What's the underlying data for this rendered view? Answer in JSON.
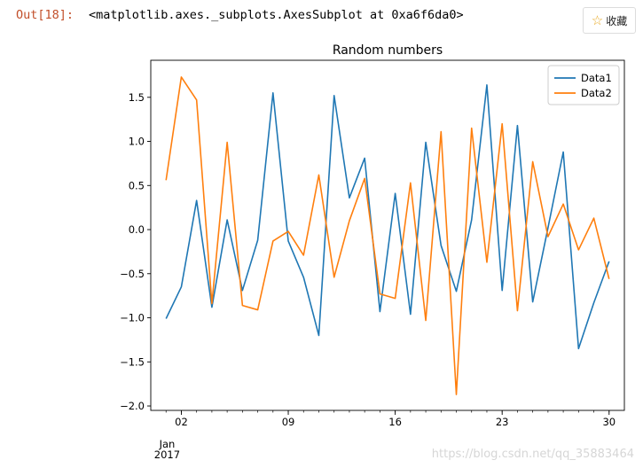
{
  "cell": {
    "prompt": "Out[18]:",
    "output_text": "<matplotlib.axes._subplots.AxesSubplot at 0xa6f6da0>"
  },
  "favorite": {
    "label": "收藏",
    "icon": "star-outline-icon"
  },
  "watermark": "https://blog.csdn.net/qq_35883464",
  "chart_data": {
    "type": "line",
    "title": "Random numbers",
    "xlabel": "",
    "ylabel": "",
    "x": [
      "2017-01-01",
      "2017-01-02",
      "2017-01-03",
      "2017-01-04",
      "2017-01-05",
      "2017-01-06",
      "2017-01-07",
      "2017-01-08",
      "2017-01-09",
      "2017-01-10",
      "2017-01-11",
      "2017-01-12",
      "2017-01-13",
      "2017-01-14",
      "2017-01-15",
      "2017-01-16",
      "2017-01-17",
      "2017-01-18",
      "2017-01-19",
      "2017-01-20",
      "2017-01-21",
      "2017-01-22",
      "2017-01-23",
      "2017-01-24",
      "2017-01-25",
      "2017-01-26",
      "2017-01-27",
      "2017-01-28",
      "2017-01-29",
      "2017-01-30"
    ],
    "xlim": [
      "2016-12-31",
      "2017-01-31"
    ],
    "ylim": [
      -2.05,
      1.92
    ],
    "x_ticks": [
      {
        "date": "2017-01-02",
        "label": "02"
      },
      {
        "date": "2017-01-09",
        "label": "09"
      },
      {
        "date": "2017-01-16",
        "label": "16"
      },
      {
        "date": "2017-01-23",
        "label": "23"
      },
      {
        "date": "2017-01-30",
        "label": "30"
      }
    ],
    "x_sublabel": [
      "Jan",
      "2017"
    ],
    "y_ticks": [
      -2.0,
      -1.5,
      -1.0,
      -0.5,
      0.0,
      0.5,
      1.0,
      1.5
    ],
    "y_tick_labels": [
      "−2.0",
      "−1.5",
      "−1.0",
      "−0.5",
      "0.0",
      "0.5",
      "1.0",
      "1.5"
    ],
    "grid": false,
    "legend_position": "top-right",
    "series": [
      {
        "name": "Data1",
        "color": "#1f77b4",
        "values": [
          -1.01,
          -0.65,
          0.33,
          -0.88,
          0.11,
          -0.69,
          -0.12,
          1.55,
          -0.13,
          -0.54,
          -1.2,
          1.52,
          0.36,
          0.81,
          -0.93,
          0.41,
          -0.96,
          0.99,
          -0.18,
          -0.7,
          0.11,
          1.64,
          -0.69,
          1.18,
          -0.82,
          0.02,
          0.88,
          -1.35,
          -0.83,
          -0.36
        ]
      },
      {
        "name": "Data2",
        "color": "#ff7f0e",
        "values": [
          0.56,
          1.73,
          1.47,
          -0.84,
          0.99,
          -0.86,
          -0.91,
          -0.13,
          -0.02,
          -0.29,
          0.62,
          -0.54,
          0.1,
          0.58,
          -0.73,
          -0.78,
          0.53,
          -1.03,
          1.11,
          -1.87,
          1.15,
          -0.37,
          1.2,
          -0.92,
          0.77,
          -0.08,
          0.29,
          -0.23,
          0.13,
          -0.56
        ]
      }
    ]
  }
}
